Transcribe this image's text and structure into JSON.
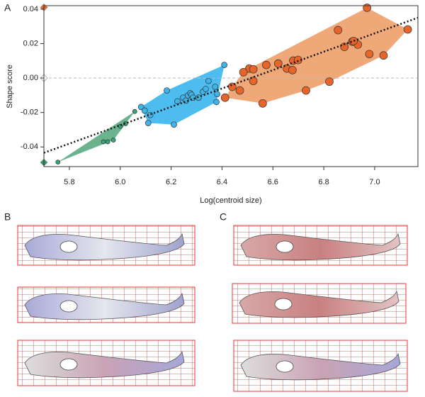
{
  "panels": [
    "A",
    "B",
    "C"
  ],
  "chart_data": {
    "type": "scatter",
    "xlabel": "Log(centroid size)",
    "ylabel": "Shape score",
    "xlim": [
      5.7,
      7.17
    ],
    "ylim": [
      -0.0514,
      0.042
    ],
    "xticks": [
      5.8,
      {
        "value": 6,
        "label": "6.0"
      },
      6.2,
      6.4,
      6.6,
      6.8,
      {
        "value": 7,
        "label": "7.0"
      }
    ],
    "yticks": [
      -0.04,
      -0.02,
      {
        "value": 0,
        "label": "0.00"
      },
      0.02,
      0.04
    ],
    "reference_line": 0,
    "trend_line": {
      "x": [
        5.7,
        7.17
      ],
      "y": [
        -0.0434,
        0.035
      ]
    },
    "axis_markers": [
      {
        "color": "#e8652a",
        "value": 0.041
      },
      {
        "color": "#ffffff",
        "value": 0
      },
      {
        "color": "#2a9a6a",
        "value": -0.049
      }
    ],
    "series": [
      {
        "color": "#3aa57a",
        "hull": "#6bb38f",
        "x": [
          5.755,
          5.934,
          5.951,
          5.973,
          6.001,
          6.021,
          6.057
        ],
        "values": [
          -0.0488,
          -0.037,
          -0.037,
          -0.036,
          -0.028,
          -0.0265,
          -0.0194
        ]
      },
      {
        "color": "#3fb4e8",
        "hull": "#4dbdf0",
        "x": [
          6.082,
          6.096,
          6.11,
          6.118,
          6.183,
          6.211,
          6.225,
          6.247,
          6.258,
          6.266,
          6.275,
          6.28,
          6.286,
          6.308,
          6.325,
          6.336,
          6.347,
          6.373,
          6.378,
          6.381,
          6.409
        ],
        "values": [
          -0.0168,
          -0.0189,
          -0.0261,
          -0.0215,
          -0.0072,
          -0.027,
          -0.0135,
          -0.0114,
          -0.0131,
          -0.0101,
          -0.0088,
          -0.0097,
          -0.0114,
          -0.0114,
          -0.008,
          -0.0063,
          -0.0017,
          -0.0051,
          -0.0139,
          -0.0093,
          0.0076
        ]
      },
      {
        "color": "#e8652a",
        "hull": "#efa878",
        "x": [
          6.412,
          6.44,
          6.47,
          6.507,
          6.523,
          6.484,
          6.523,
          6.56,
          6.574,
          6.621,
          6.655,
          6.677,
          6.68,
          6.699,
          6.73,
          6.822,
          6.856,
          6.881,
          6.912,
          6.934,
          6.917,
          6.979,
          7.035,
          6.97,
          7.13
        ],
        "values": [
          -0.0114,
          -0.0051,
          -0.0072,
          0.0055,
          -0.0017,
          0.0034,
          0.0051,
          -0.0147,
          0.0076,
          0.0084,
          0.0055,
          0.0046,
          0.0101,
          0.0105,
          -0.0072,
          -0.0021,
          0.0278,
          0.0181,
          0.0211,
          0.0194,
          0.0215,
          0.0139,
          0.0131,
          0.0408,
          0.0282
        ]
      }
    ]
  }
}
